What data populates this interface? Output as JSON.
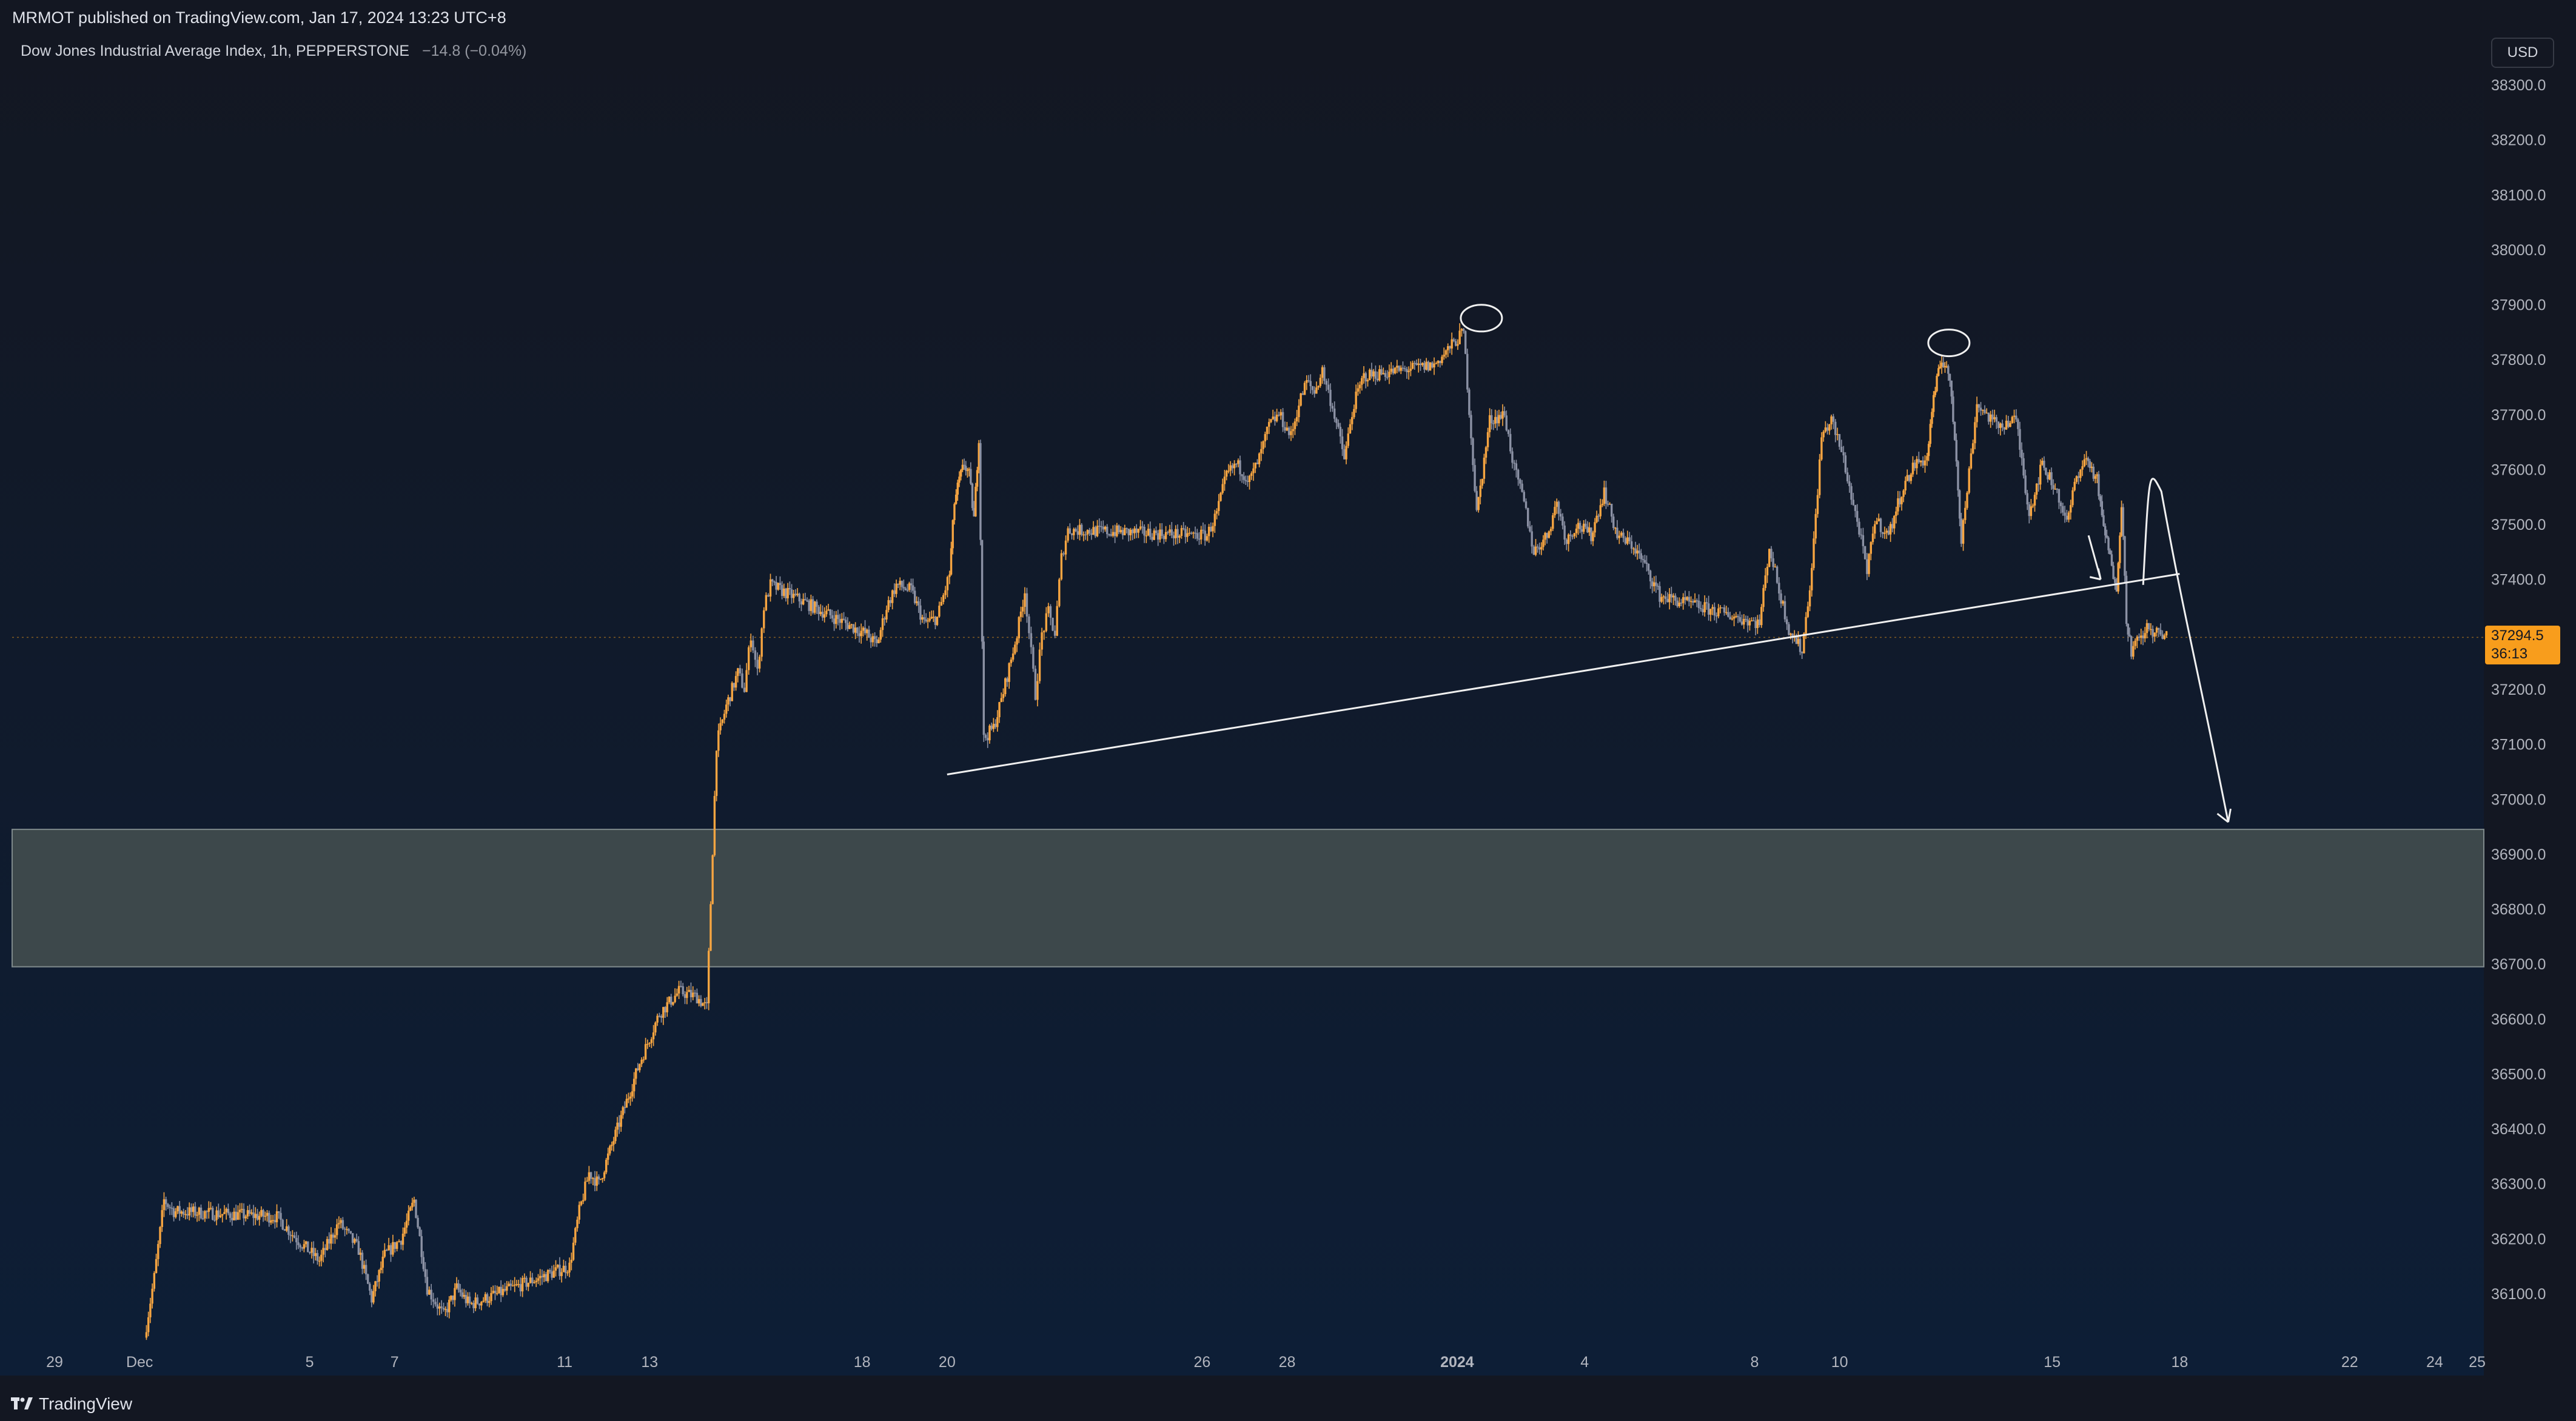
{
  "header": {
    "publisher_line": "MRMOT published on TradingView.com, Jan 17, 2024 13:23 UTC+8"
  },
  "legend": {
    "symbol": "Dow Jones Industrial Average Index, 1h, PEPPERSTONE",
    "change": "−14.8 (−0.04%)"
  },
  "price_scale": {
    "currency": "USD",
    "last_price": "37294.5",
    "countdown": "36:13"
  },
  "footer": {
    "brand": "TradingView",
    "logo_icon": "tradingview-logo-icon"
  },
  "colors": {
    "background_top": "#131722",
    "background_bottom": "#0d1e36",
    "up_candle": "#f7a541",
    "down_candle": "#8b91a4",
    "zone_fill": "#404b4d",
    "drawing": "#f0f0f0",
    "price_tag": "#f89d1c",
    "axis_text": "#b2b5be"
  },
  "chart_data": {
    "type": "candlestick",
    "title": "Dow Jones Industrial Average Index, 1h, PEPPERSTONE",
    "ylim": [
      36000,
      38350
    ],
    "xlim": [
      "2023-11-29",
      "2024-01-25"
    ],
    "yticks": [
      36100,
      36200,
      36300,
      36400,
      36500,
      36600,
      36700,
      36800,
      36900,
      37000,
      37100,
      37200,
      37300,
      37400,
      37500,
      37600,
      37700,
      37800,
      37900,
      38000,
      38100,
      38200,
      38300
    ],
    "ytick_labels": [
      "36100.0",
      "36200.0",
      "36300.0",
      "36400.0",
      "36500.0",
      "36600.0",
      "36700.0",
      "36800.0",
      "36900.0",
      "37000.0",
      "37100.0",
      "37200.0",
      "37300.0",
      "37400.0",
      "37500.0",
      "37600.0",
      "37700.0",
      "37800.0",
      "37900.0",
      "38000.0",
      "38100.0",
      "38200.0",
      "38300.0"
    ],
    "xticks": [
      {
        "date": "2023-11-29",
        "label": "29"
      },
      {
        "date": "2023-12-01",
        "label": "Dec"
      },
      {
        "date": "2023-12-05",
        "label": "5"
      },
      {
        "date": "2023-12-07",
        "label": "7"
      },
      {
        "date": "2023-12-11",
        "label": "11"
      },
      {
        "date": "2023-12-13",
        "label": "13"
      },
      {
        "date": "2023-12-18",
        "label": "18"
      },
      {
        "date": "2023-12-20",
        "label": "20"
      },
      {
        "date": "2023-12-26",
        "label": "26"
      },
      {
        "date": "2023-12-28",
        "label": "28"
      },
      {
        "date": "2024-01-01",
        "label": "2024",
        "bold": true
      },
      {
        "date": "2024-01-04",
        "label": "4"
      },
      {
        "date": "2024-01-08",
        "label": "8"
      },
      {
        "date": "2024-01-10",
        "label": "10"
      },
      {
        "date": "2024-01-15",
        "label": "15"
      },
      {
        "date": "2024-01-18",
        "label": "18"
      },
      {
        "date": "2024-01-22",
        "label": "22"
      },
      {
        "date": "2024-01-24",
        "label": "24"
      },
      {
        "date": "2024-01-25",
        "label": "25"
      }
    ],
    "price_path": [
      [
        "2023-12-01",
        36020
      ],
      [
        "2023-12-01",
        36130
      ],
      [
        "2023-12-01",
        36270
      ],
      [
        "2023-12-01",
        36250
      ],
      [
        "2023-12-04",
        36240
      ],
      [
        "2023-12-04",
        36200
      ],
      [
        "2023-12-05",
        36160
      ],
      [
        "2023-12-05",
        36230
      ],
      [
        "2023-12-06",
        36180
      ],
      [
        "2023-12-06",
        36090
      ],
      [
        "2023-12-06",
        36170
      ],
      [
        "2023-12-07",
        36200
      ],
      [
        "2023-12-07",
        36270
      ],
      [
        "2023-12-07",
        36110
      ],
      [
        "2023-12-08",
        36060
      ],
      [
        "2023-12-08",
        36110
      ],
      [
        "2023-12-08",
        36080
      ],
      [
        "2023-12-11",
        36150
      ],
      [
        "2023-12-11",
        36250
      ],
      [
        "2023-12-11",
        36320
      ],
      [
        "2023-12-11",
        36300
      ],
      [
        "2023-12-12",
        36380
      ],
      [
        "2023-12-12",
        36450
      ],
      [
        "2023-12-12",
        36520
      ],
      [
        "2023-12-13",
        36610
      ],
      [
        "2023-12-13",
        36650
      ],
      [
        "2023-12-14",
        36640
      ],
      [
        "2023-12-14",
        36620
      ],
      [
        "2023-12-14",
        37100
      ],
      [
        "2023-12-14",
        37170
      ],
      [
        "2023-12-15",
        37230
      ],
      [
        "2023-12-15",
        37200
      ],
      [
        "2023-12-15",
        37300
      ],
      [
        "2023-12-15",
        37230
      ],
      [
        "2023-12-15",
        37350
      ],
      [
        "2023-12-15",
        37390
      ],
      [
        "2023-12-18",
        37300
      ],
      [
        "2023-12-18",
        37280
      ],
      [
        "2023-12-18",
        37350
      ],
      [
        "2023-12-18",
        37390
      ],
      [
        "2023-12-19",
        37380
      ],
      [
        "2023-12-19",
        37320
      ],
      [
        "2023-12-19",
        37330
      ],
      [
        "2023-12-20",
        37410
      ],
      [
        "2023-12-20",
        37540
      ],
      [
        "2023-12-20",
        37580
      ],
      [
        "2023-12-20",
        37610
      ],
      [
        "2023-12-20",
        37590
      ],
      [
        "2023-12-20",
        37510
      ],
      [
        "2023-12-20",
        37660
      ],
      [
        "2023-12-20",
        37110
      ],
      [
        "2023-12-21",
        37130
      ],
      [
        "2023-12-21",
        37180
      ],
      [
        "2023-12-21",
        37240
      ],
      [
        "2023-12-21",
        37300
      ],
      [
        "2023-12-21",
        37380
      ],
      [
        "2023-12-22",
        37190
      ],
      [
        "2023-12-22",
        37300
      ],
      [
        "2023-12-22",
        37340
      ],
      [
        "2023-12-22",
        37300
      ],
      [
        "2023-12-22",
        37440
      ],
      [
        "2023-12-22",
        37490
      ],
      [
        "2023-12-26",
        37480
      ],
      [
        "2023-12-26",
        37520
      ],
      [
        "2023-12-26",
        37590
      ],
      [
        "2023-12-26",
        37610
      ],
      [
        "2023-12-27",
        37580
      ],
      [
        "2023-12-27",
        37620
      ],
      [
        "2023-12-27",
        37680
      ],
      [
        "2023-12-27",
        37700
      ],
      [
        "2023-12-28",
        37660
      ],
      [
        "2023-12-28",
        37720
      ],
      [
        "2023-12-28",
        37760
      ],
      [
        "2023-12-28",
        37740
      ],
      [
        "2023-12-28",
        37780
      ],
      [
        "2023-12-29",
        37700
      ],
      [
        "2023-12-29",
        37620
      ],
      [
        "2023-12-29",
        37720
      ],
      [
        "2023-12-29",
        37770
      ],
      [
        "2023-12-31",
        37790
      ],
      [
        "2024-01-01",
        37850
      ],
      [
        "2024-01-01",
        37520
      ],
      [
        "2024-01-01",
        37690
      ],
      [
        "2024-01-02",
        37700
      ],
      [
        "2024-01-02",
        37600
      ],
      [
        "2024-01-02",
        37540
      ],
      [
        "2024-01-02",
        37450
      ],
      [
        "2024-01-03",
        37480
      ],
      [
        "2024-01-03",
        37540
      ],
      [
        "2024-01-03",
        37470
      ],
      [
        "2024-01-03",
        37500
      ],
      [
        "2024-01-04",
        37480
      ],
      [
        "2024-01-04",
        37560
      ],
      [
        "2024-01-04",
        37480
      ],
      [
        "2024-01-05",
        37460
      ],
      [
        "2024-01-05",
        37420
      ],
      [
        "2024-01-05",
        37370
      ],
      [
        "2024-01-08",
        37320
      ],
      [
        "2024-01-08",
        37460
      ],
      [
        "2024-01-08",
        37380
      ],
      [
        "2024-01-08",
        37310
      ],
      [
        "2024-01-09",
        37270
      ],
      [
        "2024-01-09",
        37420
      ],
      [
        "2024-01-09",
        37660
      ],
      [
        "2024-01-09",
        37690
      ],
      [
        "2024-01-10",
        37620
      ],
      [
        "2024-01-10",
        37550
      ],
      [
        "2024-01-10",
        37490
      ],
      [
        "2024-01-10",
        37410
      ],
      [
        "2024-01-10",
        37510
      ],
      [
        "2024-01-11",
        37480
      ],
      [
        "2024-01-11",
        37560
      ],
      [
        "2024-01-11",
        37610
      ],
      [
        "2024-01-12",
        37620
      ],
      [
        "2024-01-12",
        37710
      ],
      [
        "2024-01-12",
        37760
      ],
      [
        "2024-01-12",
        37800
      ],
      [
        "2024-01-12",
        37790
      ],
      [
        "2024-01-12",
        37730
      ],
      [
        "2024-01-12",
        37620
      ],
      [
        "2024-01-12",
        37470
      ],
      [
        "2024-01-13",
        37720
      ],
      [
        "2024-01-13",
        37680
      ],
      [
        "2024-01-14",
        37690
      ],
      [
        "2024-01-14",
        37520
      ],
      [
        "2024-01-14",
        37610
      ],
      [
        "2024-01-15",
        37560
      ],
      [
        "2024-01-15",
        37500
      ],
      [
        "2024-01-15",
        37590
      ],
      [
        "2024-01-15",
        37620
      ],
      [
        "2024-01-16",
        37580
      ],
      [
        "2024-01-16",
        37510
      ],
      [
        "2024-01-16",
        37470
      ],
      [
        "2024-01-16",
        37420
      ],
      [
        "2024-01-16",
        37390
      ],
      [
        "2024-01-16",
        37540
      ],
      [
        "2024-01-16",
        37330
      ],
      [
        "2024-01-16",
        37270
      ],
      [
        "2024-01-17",
        37310
      ],
      [
        "2024-01-17",
        37294.5
      ]
    ],
    "annotations": {
      "trendline": [
        [
          "2023-12-20",
          37045
        ],
        [
          "2024-01-18",
          37410
        ]
      ],
      "zone": {
        "y_top": 36945,
        "y_bottom": 36695
      },
      "peak_circles": [
        [
          "2024-01-01",
          37860
        ],
        [
          "2024-01-12",
          37815
        ]
      ],
      "projection": [
        [
          "2024-01-16",
          37390
        ],
        [
          "2024-01-16",
          37560
        ],
        [
          "2024-01-19",
          36945
        ]
      ],
      "small_arrow": [
        [
          "2024-01-15",
          37480
        ],
        [
          "2024-01-16",
          37400
        ]
      ]
    },
    "last_price_line": 37294.5
  }
}
